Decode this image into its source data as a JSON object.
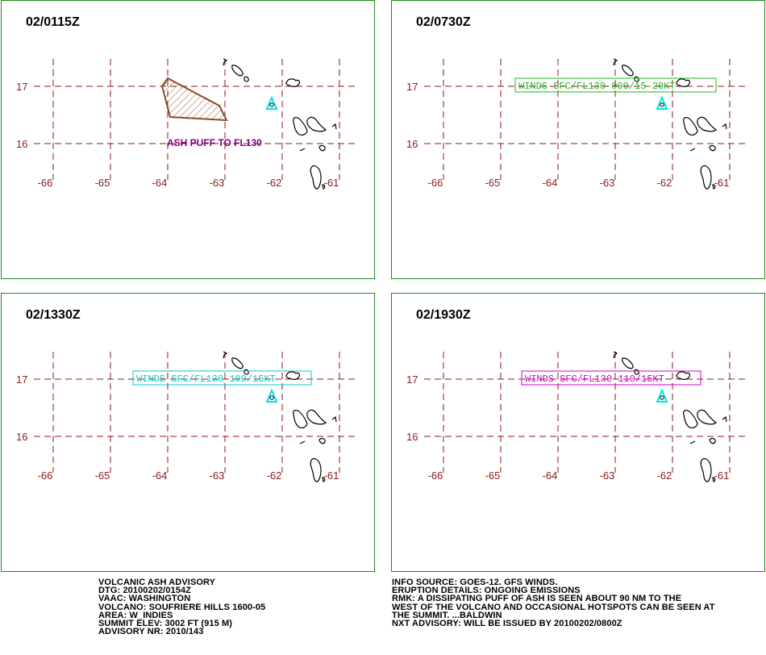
{
  "colors": {
    "frame": "#1f8a1f",
    "grid": "#8b1a1a",
    "coast": "#000000",
    "volcano": "#00e5e5",
    "ash_outline": "#8b4a2b",
    "ash_label": "#800080"
  },
  "panels": [
    {
      "time": "02/0115Z",
      "ash_label": "ASH PUFF TO FL130",
      "winds": "",
      "winds_color": ""
    },
    {
      "time": "02/0730Z",
      "ash_label": "",
      "winds": "WINDS SFC/FL130 090/15-20KT",
      "winds_color": "#22b822"
    },
    {
      "time": "02/1330Z",
      "ash_label": "",
      "winds": "WINDS SFC/FL130 100/15KT",
      "winds_color": "#00cccc"
    },
    {
      "time": "02/1930Z",
      "ash_label": "",
      "winds": "WINDS SFC/FL130 110/15KT",
      "winds_color": "#cc00cc"
    }
  ],
  "axes": {
    "lon_labels": [
      "-66",
      "-65",
      "-64",
      "-63",
      "-62",
      "-61"
    ],
    "lat_labels": [
      "17",
      "16"
    ]
  },
  "advisory": {
    "left": [
      "VOLCANIC ASH ADVISORY",
      "DTG: 20100202/0154Z",
      "VAAC: WASHINGTON",
      "VOLCANO: SOUFRIERE HILLS 1600-05",
      "AREA: W_INDIES",
      "SUMMIT ELEV: 3002 FT (915 M)",
      "ADVISORY NR: 2010/143"
    ],
    "right": [
      "INFO SOURCE: GOES-12. GFS WINDS.",
      "ERUPTION DETAILS: ONGOING EMISSIONS",
      "RMK: A DISSIPATING PUFF OF ASH IS SEEN ABOUT 90 NM TO THE",
      "WEST OF THE VOLCANO AND OCCASIONAL HOTSPOTS CAN BE SEEN AT",
      "THE SUMMIT. ...BALDWIN",
      "NXT ADVISORY: WILL BE ISSUED BY 20100202/0800Z"
    ]
  }
}
